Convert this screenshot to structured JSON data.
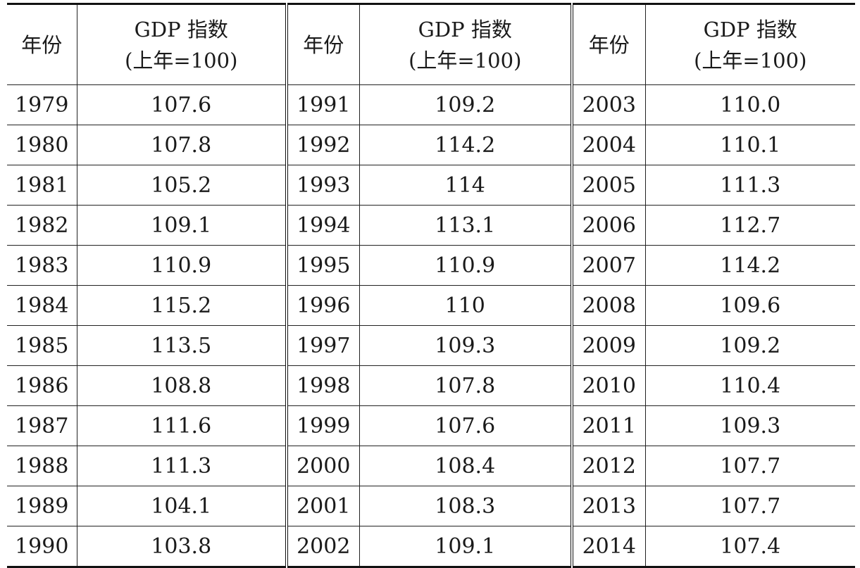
{
  "header": {
    "year_label": "年份",
    "index_label": "GDP 指数",
    "index_sub": "(上年=100)"
  },
  "rows": [
    {
      "y1": "1979",
      "v1": "107.6",
      "y2": "1991",
      "v2": "109.2",
      "y3": "2003",
      "v3": "110.0"
    },
    {
      "y1": "1980",
      "v1": "107.8",
      "y2": "1992",
      "v2": "114.2",
      "y3": "2004",
      "v3": "110.1"
    },
    {
      "y1": "1981",
      "v1": "105.2",
      "y2": "1993",
      "v2": "114",
      "y3": "2005",
      "v3": "111.3"
    },
    {
      "y1": "1982",
      "v1": "109.1",
      "y2": "1994",
      "v2": "113.1",
      "y3": "2006",
      "v3": "112.7"
    },
    {
      "y1": "1983",
      "v1": "110.9",
      "y2": "1995",
      "v2": "110.9",
      "y3": "2007",
      "v3": "114.2"
    },
    {
      "y1": "1984",
      "v1": "115.2",
      "y2": "1996",
      "v2": "110",
      "y3": "2008",
      "v3": "109.6"
    },
    {
      "y1": "1985",
      "v1": "113.5",
      "y2": "1997",
      "v2": "109.3",
      "y3": "2009",
      "v3": "109.2"
    },
    {
      "y1": "1986",
      "v1": "108.8",
      "y2": "1998",
      "v2": "107.8",
      "y3": "2010",
      "v3": "110.4"
    },
    {
      "y1": "1987",
      "v1": "111.6",
      "y2": "1999",
      "v2": "107.6",
      "y3": "2011",
      "v3": "109.3"
    },
    {
      "y1": "1988",
      "v1": "111.3",
      "y2": "2000",
      "v2": "108.4",
      "y3": "2012",
      "v3": "107.7"
    },
    {
      "y1": "1989",
      "v1": "104.1",
      "y2": "2001",
      "v2": "108.3",
      "y3": "2013",
      "v3": "107.7"
    },
    {
      "y1": "1990",
      "v1": "103.8",
      "y2": "2002",
      "v2": "109.1",
      "y3": "2014",
      "v3": "107.4"
    }
  ]
}
